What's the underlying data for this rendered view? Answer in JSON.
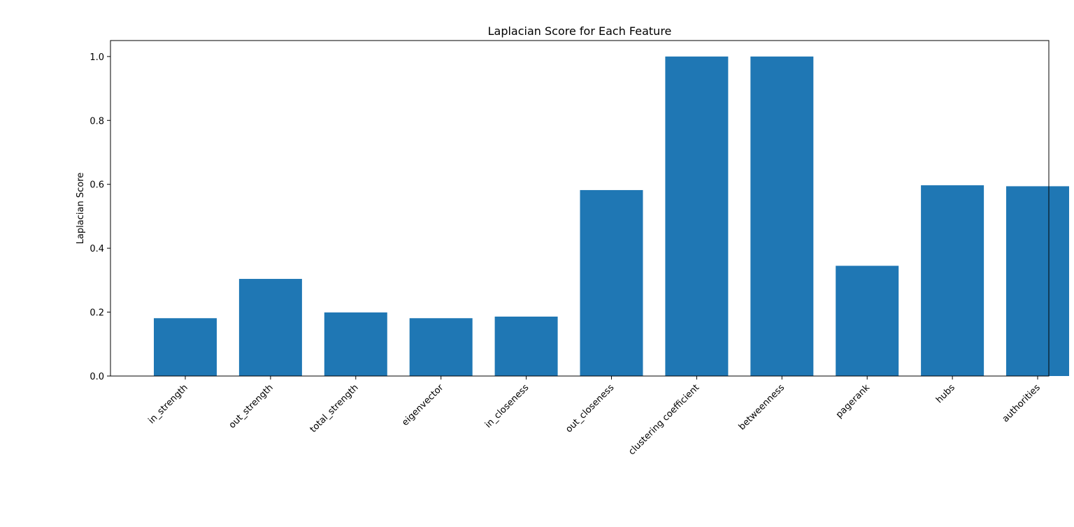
{
  "chart_data": {
    "type": "bar",
    "title": "Laplacian Score for Each Feature",
    "xlabel": "",
    "ylabel": "Laplacian Score",
    "categories": [
      "in_strength",
      "out_strength",
      "total_strength",
      "eigenvector",
      "in_closeness",
      "out_closeness",
      "clustering coefficient",
      "betweenness",
      "pagerank",
      "hubs",
      "authorities"
    ],
    "values": [
      0.181,
      0.304,
      0.199,
      0.181,
      0.186,
      0.582,
      1.0,
      1.0,
      0.345,
      0.597,
      0.594
    ],
    "ylim": [
      0,
      1.05
    ],
    "yticks": [
      "0.0",
      "0.2",
      "0.4",
      "0.6",
      "0.8",
      "1.0"
    ],
    "bar_color": "#1f77b4",
    "grid": false,
    "legend": "none"
  }
}
